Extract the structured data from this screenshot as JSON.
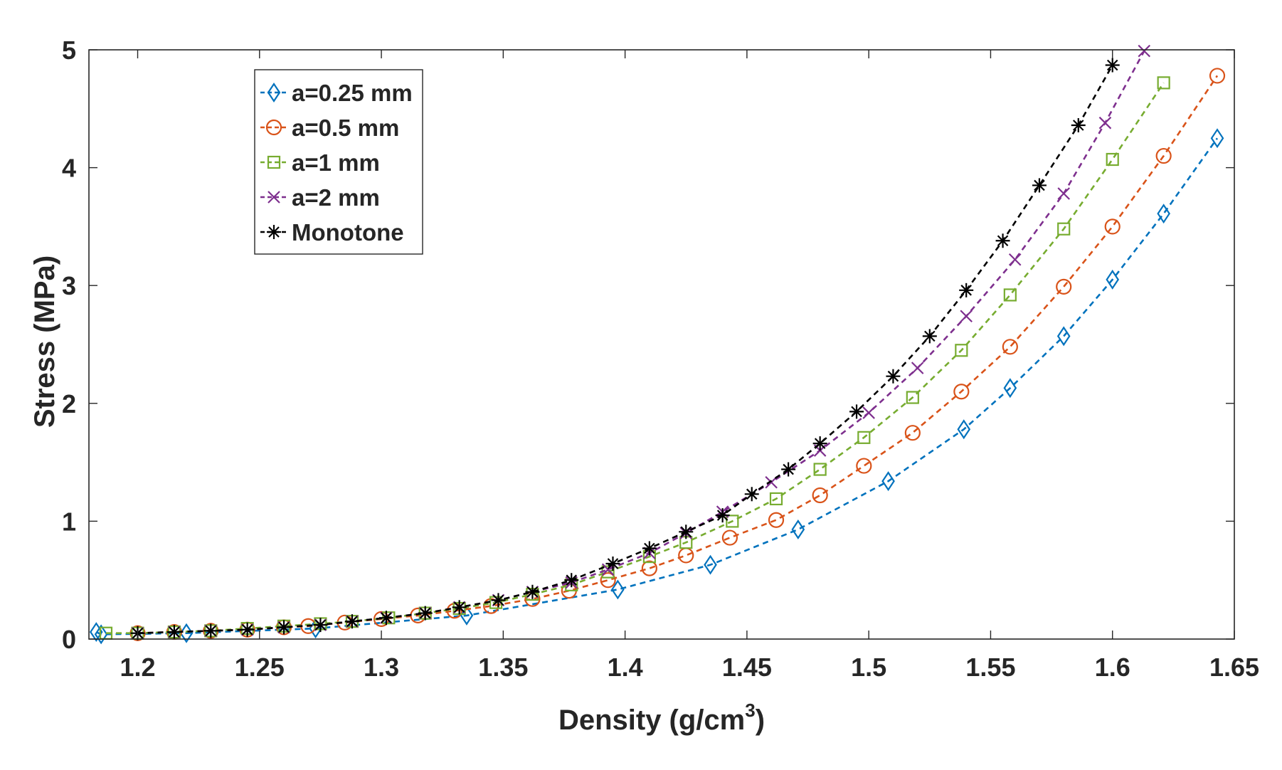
{
  "chart_data": {
    "type": "line",
    "xlabel": "Density (g/cm",
    "xlabel_sup": "3",
    "xlabel_end": ")",
    "ylabel": "Stress (MPa)",
    "xlim": [
      1.18,
      1.65
    ],
    "ylim": [
      0,
      5
    ],
    "xticks": [
      1.2,
      1.25,
      1.3,
      1.35,
      1.4,
      1.45,
      1.5,
      1.55,
      1.6,
      1.65
    ],
    "xtick_labels": [
      "1.2",
      "1.25",
      "1.3",
      "1.35",
      "1.4",
      "1.45",
      "1.5",
      "1.55",
      "1.6",
      "1.65"
    ],
    "yticks": [
      0,
      1,
      2,
      3,
      4,
      5
    ],
    "ytick_labels": [
      "0",
      "1",
      "2",
      "3",
      "4",
      "5"
    ],
    "grid": false,
    "legend_position": "top-left",
    "series": [
      {
        "name": "a=0.25 mm",
        "marker": "diamond",
        "color": "#0072BD",
        "x": [
          1.183,
          1.185,
          1.22,
          1.273,
          1.335,
          1.397,
          1.435,
          1.471,
          1.508,
          1.539,
          1.558,
          1.58,
          1.6,
          1.621,
          1.643
        ],
        "y": [
          0.06,
          0.04,
          0.05,
          0.09,
          0.2,
          0.42,
          0.63,
          0.93,
          1.34,
          1.78,
          2.13,
          2.57,
          3.05,
          3.61,
          4.25
        ]
      },
      {
        "name": "a=0.5 mm",
        "marker": "circle",
        "color": "#D95319",
        "x": [
          1.2,
          1.215,
          1.23,
          1.245,
          1.26,
          1.27,
          1.285,
          1.3,
          1.315,
          1.33,
          1.345,
          1.362,
          1.377,
          1.393,
          1.41,
          1.425,
          1.443,
          1.462,
          1.48,
          1.498,
          1.518,
          1.538,
          1.558,
          1.58,
          1.6,
          1.621,
          1.643
        ],
        "y": [
          0.05,
          0.06,
          0.07,
          0.08,
          0.1,
          0.11,
          0.14,
          0.17,
          0.2,
          0.24,
          0.28,
          0.34,
          0.41,
          0.5,
          0.6,
          0.71,
          0.86,
          1.01,
          1.22,
          1.47,
          1.75,
          2.1,
          2.48,
          2.99,
          3.5,
          4.1,
          4.78
        ]
      },
      {
        "name": "a=1 mm",
        "marker": "square",
        "color": "#77AC30",
        "x": [
          1.187,
          1.2,
          1.215,
          1.23,
          1.245,
          1.26,
          1.275,
          1.288,
          1.303,
          1.318,
          1.332,
          1.347,
          1.362,
          1.378,
          1.393,
          1.41,
          1.425,
          1.444,
          1.462,
          1.48,
          1.498,
          1.518,
          1.538,
          1.558,
          1.58,
          1.6,
          1.621
        ],
        "y": [
          0.05,
          0.05,
          0.06,
          0.07,
          0.09,
          0.11,
          0.13,
          0.15,
          0.18,
          0.22,
          0.26,
          0.31,
          0.38,
          0.46,
          0.57,
          0.7,
          0.82,
          1.0,
          1.19,
          1.44,
          1.71,
          2.05,
          2.45,
          2.92,
          3.48,
          4.07,
          4.72
        ]
      },
      {
        "name": "a=2 mm",
        "marker": "x",
        "color": "#7E2F8E",
        "x": [
          1.2,
          1.215,
          1.23,
          1.245,
          1.26,
          1.275,
          1.288,
          1.302,
          1.318,
          1.332,
          1.348,
          1.362,
          1.378,
          1.393,
          1.41,
          1.425,
          1.44,
          1.46,
          1.48,
          1.5,
          1.52,
          1.54,
          1.56,
          1.58,
          1.597,
          1.613
        ],
        "y": [
          0.05,
          0.06,
          0.07,
          0.08,
          0.1,
          0.12,
          0.15,
          0.18,
          0.22,
          0.27,
          0.33,
          0.4,
          0.48,
          0.59,
          0.73,
          0.9,
          1.08,
          1.33,
          1.6,
          1.92,
          2.3,
          2.74,
          3.22,
          3.78,
          4.38,
          4.99
        ]
      },
      {
        "name": "Monotone",
        "marker": "star",
        "color": "#000000",
        "x": [
          1.2,
          1.215,
          1.23,
          1.245,
          1.26,
          1.275,
          1.288,
          1.302,
          1.318,
          1.332,
          1.348,
          1.362,
          1.378,
          1.395,
          1.41,
          1.425,
          1.44,
          1.452,
          1.467,
          1.48,
          1.495,
          1.51,
          1.525,
          1.54,
          1.555,
          1.57,
          1.586,
          1.6
        ],
        "y": [
          0.05,
          0.06,
          0.07,
          0.08,
          0.1,
          0.12,
          0.15,
          0.18,
          0.22,
          0.27,
          0.33,
          0.4,
          0.5,
          0.64,
          0.77,
          0.91,
          1.05,
          1.23,
          1.44,
          1.66,
          1.93,
          2.23,
          2.57,
          2.96,
          3.38,
          3.85,
          4.36,
          4.87
        ]
      }
    ]
  }
}
